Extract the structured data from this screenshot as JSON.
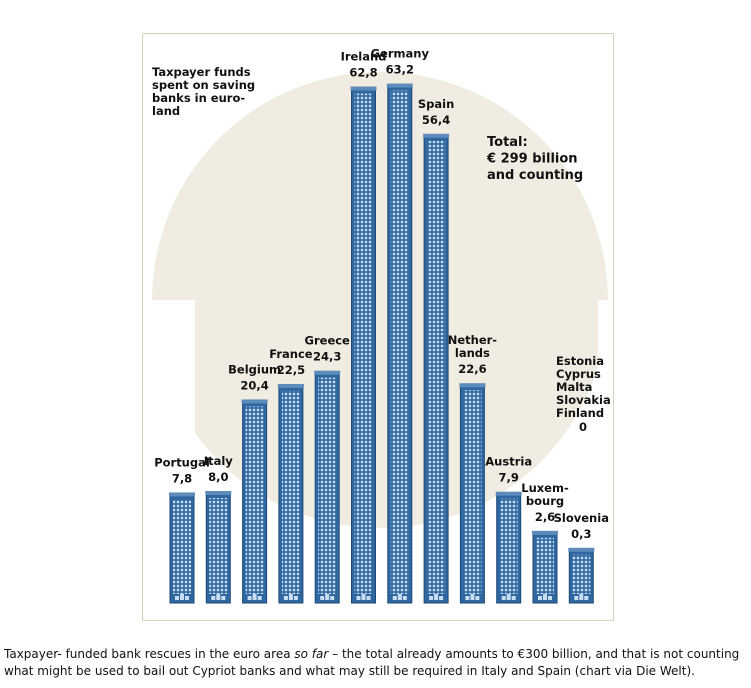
{
  "chart_data": {
    "type": "bar",
    "title": [
      "Taxpayer funds",
      "spent on saving",
      "banks in euro-",
      "land"
    ],
    "total": [
      "Total:",
      "€ 299 billion",
      "and counting"
    ],
    "categories": [
      [
        "Portugal"
      ],
      [
        "Italy"
      ],
      [
        "Belgium"
      ],
      [
        "France"
      ],
      [
        "Greece"
      ],
      [
        "Ireland"
      ],
      [
        "Germany"
      ],
      [
        "Spain"
      ],
      [
        "Nether-",
        "lands"
      ],
      [
        "Austria"
      ],
      [
        "Luxem-",
        "bourg"
      ],
      [
        "Slovenia"
      ]
    ],
    "values": [
      7.8,
      8.0,
      20.4,
      22.5,
      24.3,
      62.8,
      63.2,
      56.4,
      22.6,
      7.9,
      2.6,
      0.3
    ],
    "value_labels": [
      "7,8",
      "8,0",
      "20,4",
      "22,5",
      "24,3",
      "62,8",
      "63,2",
      "56,4",
      "22,6",
      "7,9",
      "2,6",
      "0,3"
    ],
    "color": "#2f67a0",
    "others": {
      "names": [
        "Estonia",
        "Cyprus",
        "Malta",
        "Slovakia",
        "Finland"
      ],
      "value": 0
    }
  },
  "caption": [
    "Taxpayer- funded bank rescues in the euro area ",
    "so far",
    " – the total already amounts to €300 billion, and that is not counting what might be used to bail out Cypriot banks and what may still be required in Italy and Spain (chart via Die Welt)."
  ]
}
